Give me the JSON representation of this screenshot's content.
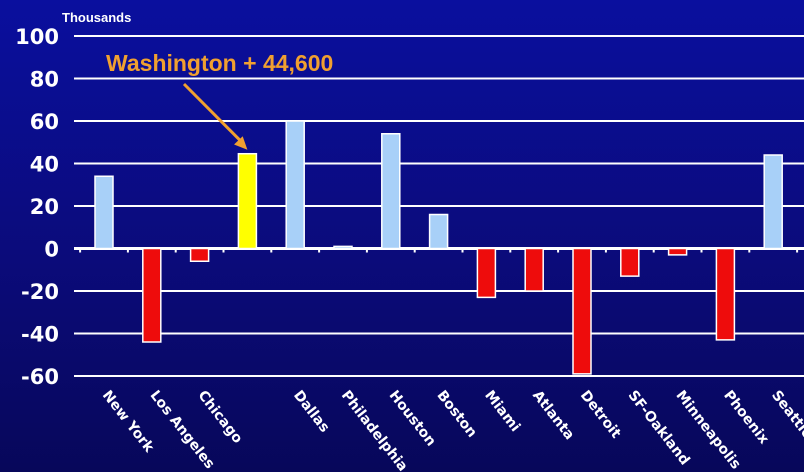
{
  "chart_data": {
    "type": "bar",
    "unit_label": "Thousands",
    "ylim": [
      -60,
      100
    ],
    "yticks": [
      100,
      80,
      60,
      40,
      20,
      0,
      -20,
      -40,
      -60
    ],
    "grid": true,
    "categories": [
      "New York",
      "Los Angeles",
      "Chicago",
      "Washington",
      "Dallas",
      "Philadelphia",
      "Houston",
      "Boston",
      "Miami",
      "Atlanta",
      "Detroit",
      "SF-Oakland",
      "Minneapolis",
      "Phoenix",
      "Seattle"
    ],
    "values": [
      34,
      -44,
      -6,
      44.6,
      60,
      1,
      54,
      16,
      -23,
      -20,
      -59,
      -13,
      -3,
      -43,
      44
    ],
    "tick_label_hidden": [
      false,
      false,
      false,
      true,
      false,
      false,
      false,
      false,
      false,
      false,
      false,
      false,
      false,
      false,
      false
    ],
    "highlight_index": 3,
    "annotation": {
      "text": "Washington + 44,600",
      "target_index": 3
    },
    "colors": {
      "positive": "#a8d0f8",
      "negative": "#ee0c0c",
      "highlight": "#ffff00",
      "annotation": "#f0a030",
      "grid": "#ffffff",
      "bar_edge": "#ffffff"
    }
  }
}
